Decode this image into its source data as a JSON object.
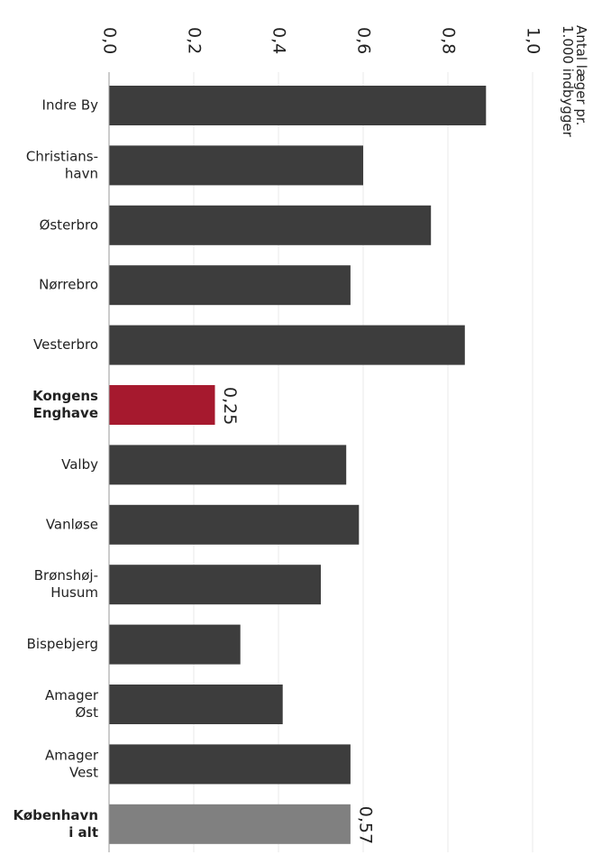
{
  "chart_data": {
    "type": "bar",
    "orientation": "horizontal",
    "title": "",
    "xlabel": "",
    "ylabel": "",
    "unit_label": [
      "Antal læger pr.",
      "1.000 indbygger"
    ],
    "xlim": [
      0,
      1.0
    ],
    "ticks": [
      0,
      0.2,
      0.4,
      0.6,
      0.8,
      1.0
    ],
    "tick_labels": [
      "0,0",
      "0,2",
      "0,4",
      "0,6",
      "0,8",
      "1,0"
    ],
    "categories": [
      [
        "Indre By"
      ],
      [
        "Christians-",
        "havn"
      ],
      [
        "Østerbro"
      ],
      [
        "Nørrebro"
      ],
      [
        "Vesterbro"
      ],
      [
        "Kongens",
        "Enghave"
      ],
      [
        "Valby"
      ],
      [
        "Vanløse"
      ],
      [
        "Brønshøj-",
        "Husum"
      ],
      [
        "Bispebjerg"
      ],
      [
        "Amager",
        "Øst"
      ],
      [
        "Amager",
        "Vest"
      ],
      [
        "København",
        "i alt"
      ]
    ],
    "values": [
      0.89,
      0.6,
      0.76,
      0.57,
      0.84,
      0.25,
      0.56,
      0.59,
      0.5,
      0.31,
      0.41,
      0.57,
      0.57
    ],
    "bold_categories": [
      5,
      12
    ],
    "data_labels": [
      {
        "index": 5,
        "text": "0,25"
      },
      {
        "index": 12,
        "text": "0,57"
      }
    ],
    "colors": {
      "default": "#3d3d3d",
      "highlight": "#a6192e",
      "total": "#808080",
      "grid": "#e8e8e8",
      "axis": "#999999"
    },
    "bar_colors": [
      "default",
      "default",
      "default",
      "default",
      "default",
      "highlight",
      "default",
      "default",
      "default",
      "default",
      "default",
      "default",
      "total"
    ],
    "grid": true,
    "legend": "none"
  }
}
